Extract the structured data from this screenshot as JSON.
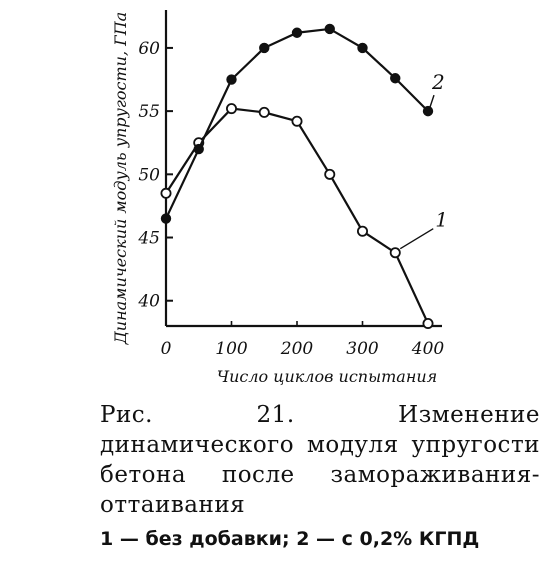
{
  "chart_data": {
    "type": "line",
    "xlabel": "Число циклов испытания",
    "ylabel": "Динамический модуль упругости, ГПа",
    "xlim": [
      0,
      400
    ],
    "ylim": [
      38,
      63
    ],
    "x_ticks": [
      "0",
      "100",
      "200",
      "300",
      "400"
    ],
    "y_ticks": [
      "40",
      "45",
      "50",
      "55",
      "60"
    ],
    "grid": false,
    "series": [
      {
        "name": "1",
        "marker": "open-circle",
        "x": [
          0,
          50,
          100,
          150,
          200,
          250,
          300,
          350,
          400
        ],
        "y": [
          48.5,
          52.5,
          55.2,
          54.9,
          54.2,
          50.0,
          45.5,
          43.8,
          38.2
        ]
      },
      {
        "name": "2",
        "marker": "filled-circle",
        "x": [
          0,
          50,
          100,
          150,
          200,
          250,
          300,
          350,
          400
        ],
        "y": [
          46.5,
          52.0,
          57.5,
          60.0,
          61.2,
          61.5,
          60.0,
          57.6,
          55.0
        ]
      }
    ]
  },
  "caption": {
    "title": "Рис. 21. Изменение динамического модуля упругости бетона после замораживания-оттаивания",
    "legend": "1 — без добавки; 2 — с 0,2% КГПД"
  }
}
